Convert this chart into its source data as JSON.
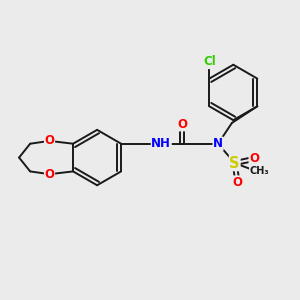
{
  "bg_color": "#ebebeb",
  "bond_color": "#1a1a1a",
  "atom_colors": {
    "O": "#ff0000",
    "N": "#0000ff",
    "S": "#cccc00",
    "Cl": "#33cc00",
    "C": "#1a1a1a"
  },
  "font_size_atom": 8.5,
  "line_width": 1.4,
  "dbo": 0.035
}
